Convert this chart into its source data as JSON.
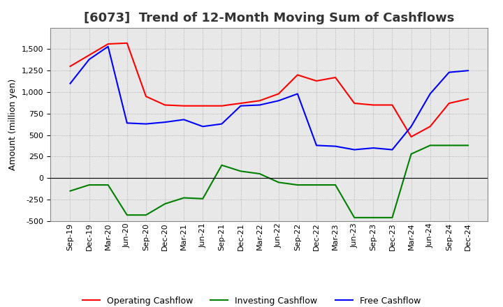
{
  "title": "[6073]  Trend of 12-Month Moving Sum of Cashflows",
  "ylabel": "Amount (million yen)",
  "x_labels": [
    "Sep-19",
    "Dec-19",
    "Mar-20",
    "Jun-20",
    "Sep-20",
    "Dec-20",
    "Mar-21",
    "Jun-21",
    "Sep-21",
    "Dec-21",
    "Mar-22",
    "Jun-22",
    "Sep-22",
    "Dec-22",
    "Mar-23",
    "Jun-23",
    "Sep-23",
    "Dec-23",
    "Mar-24",
    "Jun-24",
    "Sep-24",
    "Dec-24"
  ],
  "operating_cashflow": [
    1300,
    1430,
    1560,
    1570,
    950,
    850,
    840,
    840,
    840,
    870,
    900,
    980,
    1200,
    1130,
    1170,
    870,
    850,
    850,
    480,
    600,
    870,
    920
  ],
  "investing_cashflow": [
    -150,
    -80,
    -80,
    -430,
    -430,
    -300,
    -230,
    -240,
    150,
    80,
    50,
    -50,
    -80,
    -80,
    -80,
    -460,
    -460,
    -460,
    280,
    380,
    380,
    380
  ],
  "free_cashflow": [
    1100,
    1380,
    1530,
    640,
    630,
    650,
    680,
    600,
    630,
    840,
    850,
    900,
    980,
    380,
    370,
    330,
    350,
    330,
    600,
    980,
    1230,
    1250
  ],
  "operating_color": "#ff0000",
  "investing_color": "#008000",
  "free_color": "#0000ff",
  "ylim": [
    -500,
    1750
  ],
  "yticks": [
    -500,
    -250,
    0,
    250,
    500,
    750,
    1000,
    1250,
    1500
  ],
  "background_color": "#ffffff",
  "plot_bg_color": "#e8e8e8",
  "grid_color": "#888888",
  "title_fontsize": 13,
  "axis_fontsize": 9,
  "tick_fontsize": 8,
  "legend_fontsize": 9
}
